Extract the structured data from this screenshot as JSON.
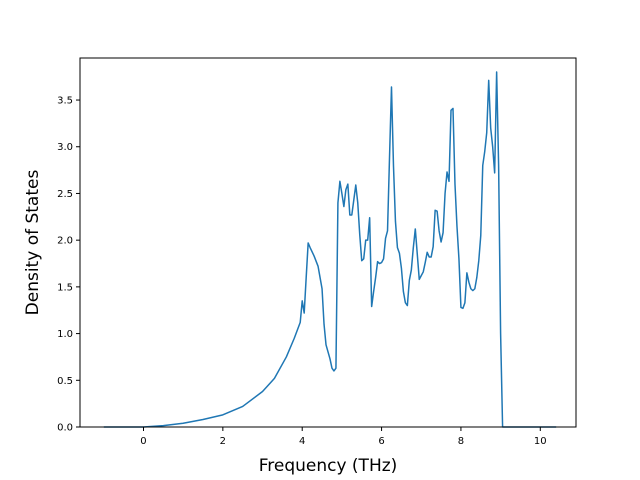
{
  "chart_data": {
    "type": "line",
    "title": "",
    "xlabel": "Frequency (THz)",
    "ylabel": "Density of States",
    "xlim": [
      -1.6,
      10.9
    ],
    "ylim": [
      0.0,
      3.95
    ],
    "xticks": [
      0,
      2,
      4,
      6,
      8,
      10
    ],
    "xtick_labels": [
      "0",
      "2",
      "4",
      "6",
      "8",
      "10"
    ],
    "yticks": [
      0.0,
      0.5,
      1.0,
      1.5,
      2.0,
      2.5,
      3.0,
      3.5
    ],
    "ytick_labels": [
      "0.0",
      "0.5",
      "1.0",
      "1.5",
      "2.0",
      "2.5",
      "3.0",
      "3.5"
    ],
    "grid": false,
    "legend": "none",
    "colors": {
      "line": "#1f77b4"
    },
    "series": [
      {
        "x": [
          -1.0,
          0.0,
          0.5,
          1.0,
          1.5,
          2.0,
          2.5,
          3.0,
          3.3,
          3.6,
          3.8,
          3.95,
          4.0,
          4.05,
          4.1,
          4.15,
          4.2,
          4.3,
          4.4,
          4.5,
          4.55,
          4.6,
          4.7,
          4.75,
          4.8,
          4.85,
          4.9,
          4.95,
          5.0,
          5.05,
          5.1,
          5.15,
          5.2,
          5.25,
          5.3,
          5.35,
          5.4,
          5.45,
          5.5,
          5.55,
          5.6,
          5.65,
          5.7,
          5.75,
          5.8,
          5.85,
          5.9,
          5.95,
          6.0,
          6.05,
          6.1,
          6.15,
          6.2,
          6.25,
          6.3,
          6.35,
          6.4,
          6.45,
          6.5,
          6.55,
          6.6,
          6.65,
          6.7,
          6.75,
          6.8,
          6.85,
          6.9,
          6.95,
          7.0,
          7.05,
          7.1,
          7.15,
          7.2,
          7.25,
          7.3,
          7.35,
          7.4,
          7.45,
          7.5,
          7.55,
          7.6,
          7.65,
          7.7,
          7.75,
          7.8,
          7.85,
          7.9,
          7.95,
          8.0,
          8.05,
          8.1,
          8.15,
          8.2,
          8.25,
          8.3,
          8.35,
          8.4,
          8.45,
          8.5,
          8.55,
          8.6,
          8.65,
          8.7,
          8.75,
          8.8,
          8.85,
          8.9,
          8.95,
          9.0,
          9.05,
          9.1,
          9.15,
          9.2,
          9.25,
          9.3,
          9.35,
          9.4,
          9.45,
          9.5,
          9.55,
          10.4
        ],
        "y": [
          0.0,
          0.0,
          0.015,
          0.04,
          0.08,
          0.13,
          0.22,
          0.38,
          0.52,
          0.75,
          0.95,
          1.12,
          1.35,
          1.22,
          1.6,
          1.97,
          1.92,
          1.83,
          1.72,
          1.48,
          1.1,
          0.88,
          0.73,
          0.63,
          0.6,
          0.63,
          2.4,
          2.63,
          2.5,
          2.36,
          2.54,
          2.6,
          2.27,
          2.27,
          2.43,
          2.59,
          2.4,
          2.06,
          1.78,
          1.8,
          2.0,
          2.0,
          2.24,
          1.29,
          1.45,
          1.6,
          1.77,
          1.75,
          1.76,
          1.8,
          2.02,
          2.1,
          2.88,
          3.64,
          2.8,
          2.2,
          1.92,
          1.86,
          1.7,
          1.45,
          1.33,
          1.3,
          1.57,
          1.68,
          1.92,
          2.12,
          1.85,
          1.58,
          1.62,
          1.66,
          1.76,
          1.87,
          1.82,
          1.82,
          1.93,
          2.32,
          2.31,
          2.1,
          1.98,
          2.08,
          2.5,
          2.73,
          2.63,
          3.39,
          3.41,
          2.6,
          2.15,
          1.8,
          1.28,
          1.27,
          1.33,
          1.65,
          1.55,
          1.48,
          1.46,
          1.48,
          1.6,
          1.78,
          2.05,
          2.8,
          2.95,
          3.15,
          3.71,
          3.2,
          3.0,
          2.72,
          3.8,
          2.8,
          1.0,
          0.0,
          0.0,
          0.0,
          0.0,
          0.0,
          0.0,
          0.0,
          0.0,
          0.0,
          0.0,
          0.0,
          0.0
        ]
      }
    ]
  }
}
